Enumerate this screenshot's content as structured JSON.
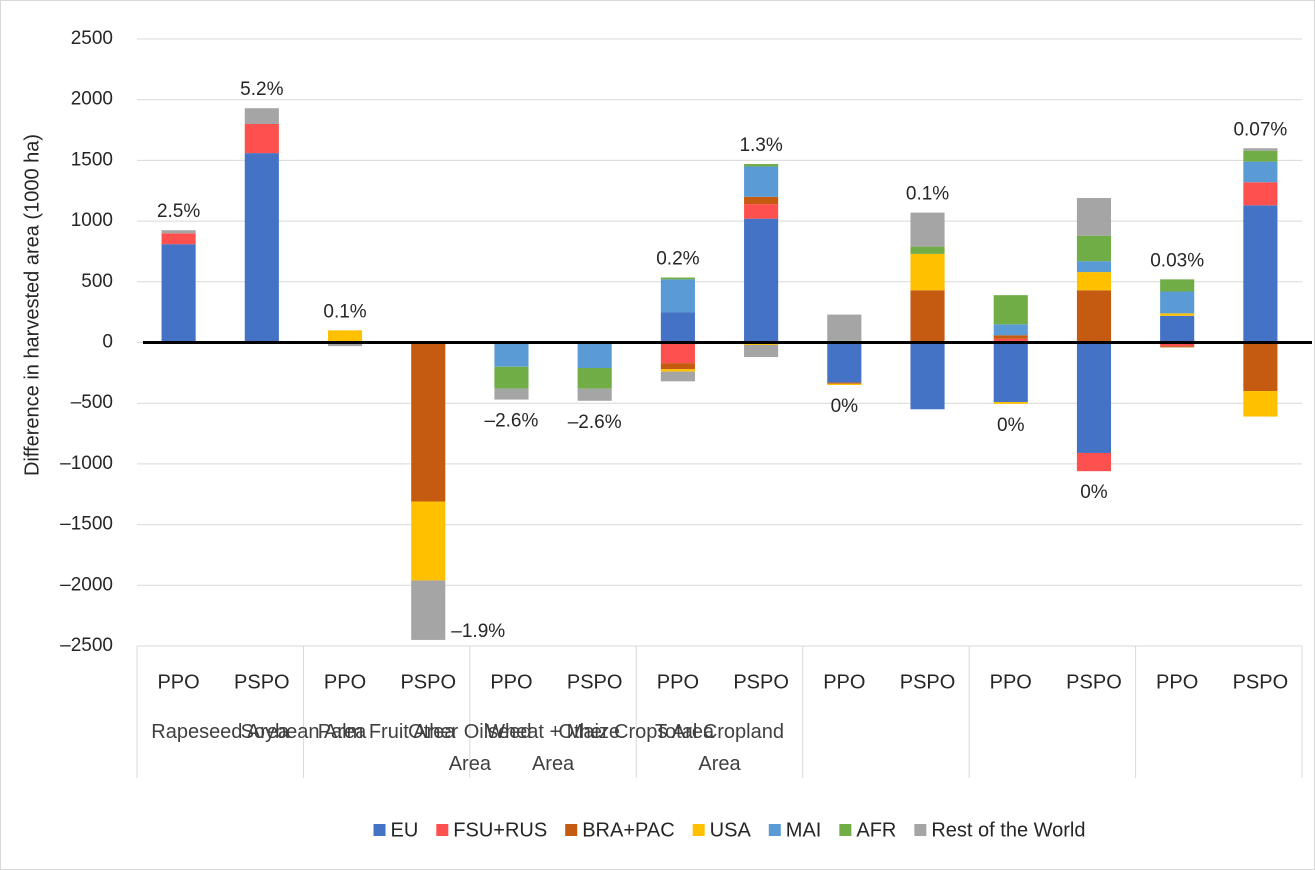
{
  "chart_data": {
    "type": "stacked_bar",
    "y_axis_label": "Difference in harvested area (1000 ha)",
    "categories": [
      "PPO",
      "PSPO",
      "PPO",
      "PSPO",
      "PPO",
      "PSPO",
      "PPO",
      "PSPO",
      "PPO",
      "PSPO",
      "PPO",
      "PSPO",
      "PPO",
      "PSPO"
    ],
    "groups": [
      "Rapeseed Area",
      "Soybean Area",
      "Palm Fruit Area",
      "Other Oilseed Area",
      "Wheat + Maize Area",
      "Other Crops Area",
      "Total Cropland Area"
    ],
    "series": [
      {
        "name": "EU",
        "color": "#4472c4",
        "values": [
          810,
          1560,
          0,
          0,
          0,
          0,
          250,
          1020,
          -330,
          -550,
          -490,
          -910,
          220,
          1130
        ]
      },
      {
        "name": "FSU+RUS",
        "color": "#ff5050",
        "values": [
          90,
          240,
          0,
          0,
          0,
          0,
          -170,
          120,
          0,
          0,
          30,
          -150,
          -30,
          190
        ]
      },
      {
        "name": "BRA+PAC",
        "color": "#c55a11",
        "values": [
          0,
          0,
          0,
          -1310,
          0,
          0,
          -50,
          60,
          -10,
          430,
          30,
          430,
          -10,
          -400
        ]
      },
      {
        "name": "USA",
        "color": "#ffc000",
        "values": [
          0,
          0,
          100,
          -650,
          0,
          0,
          -20,
          -20,
          -10,
          300,
          -15,
          150,
          20,
          -210
        ]
      },
      {
        "name": "MAI",
        "color": "#5b9bd5",
        "values": [
          0,
          0,
          0,
          0,
          -200,
          -210,
          270,
          250,
          0,
          0,
          90,
          90,
          180,
          170
        ]
      },
      {
        "name": "AFR",
        "color": "#70ad47",
        "values": [
          0,
          0,
          0,
          0,
          -180,
          -170,
          15,
          20,
          15,
          60,
          240,
          210,
          100,
          90
        ]
      },
      {
        "name": "Rest of the World",
        "color": "#a5a5a5",
        "values": [
          25,
          130,
          -30,
          -490,
          -90,
          -100,
          -80,
          -100,
          215,
          280,
          0,
          310,
          0,
          20
        ]
      }
    ],
    "bar_labels": [
      "2.5%",
      "5.2%",
      "0.1%",
      "–1.9%",
      "–2.6%",
      "–2.6%",
      "0.2%",
      "1.3%",
      "0%",
      "0.1%",
      "0%",
      "0%",
      "0.03%",
      "0.07%"
    ],
    "bar_label_positions": [
      "above",
      "above",
      "above",
      "right",
      "below",
      "below",
      "above",
      "above",
      "below",
      "above",
      "below",
      "below",
      "above",
      "above"
    ],
    "ylim": [
      -2500,
      2500
    ],
    "yticks": [
      {
        "value": -2500,
        "label": "–2500"
      },
      {
        "value": -2000,
        "label": "–2000"
      },
      {
        "value": -1500,
        "label": "–1500"
      },
      {
        "value": -1000,
        "label": "–1000"
      },
      {
        "value": -500,
        "label": "–500"
      },
      0,
      500,
      1000,
      1500,
      2000,
      2500
    ],
    "grid": true,
    "legend": "bottom"
  }
}
